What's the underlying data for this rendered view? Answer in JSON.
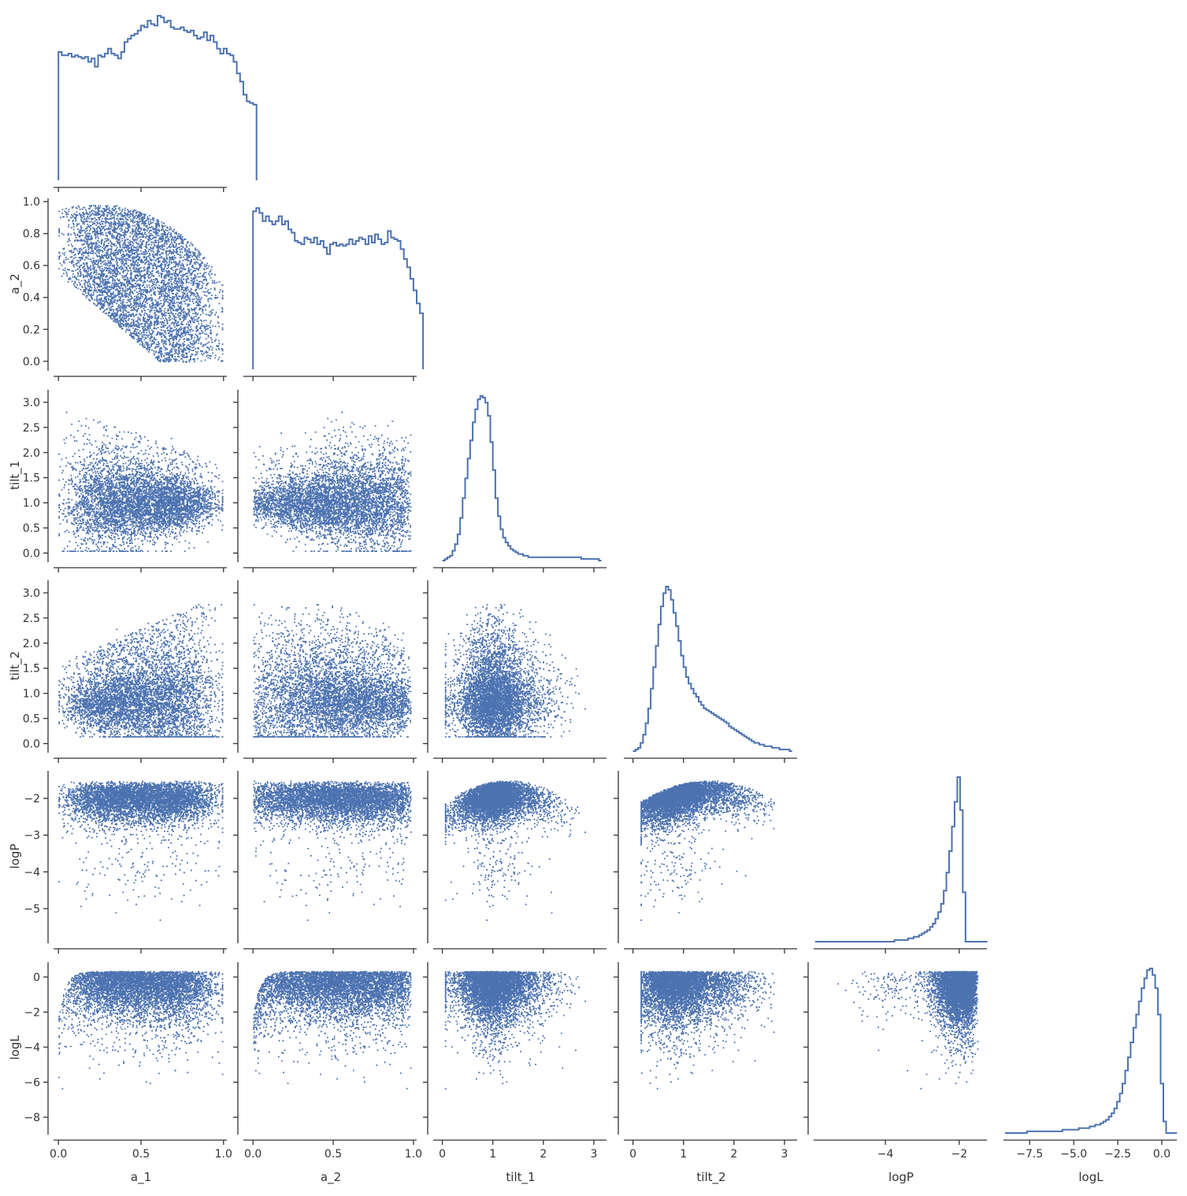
{
  "chart_data": {
    "type": "pairplot",
    "layout": "corner",
    "diagonal": "step-histogram",
    "offdiagonal": "scatter",
    "color": "#4c72b0",
    "grid": false,
    "variables": [
      {
        "name": "a_1",
        "range": [
          -0.02,
          1.02
        ],
        "ticks": [
          0.0,
          0.5,
          1.0
        ],
        "tick_labels": [
          "0.0",
          "0.5",
          "1.0"
        ]
      },
      {
        "name": "a_2",
        "range": [
          -0.05,
          1.02
        ],
        "ticks": [
          0.0,
          0.2,
          0.4,
          0.6,
          0.8,
          1.0
        ],
        "tick_labels": [
          "0.0",
          "0.2",
          "0.4",
          "0.6",
          "0.8",
          "1.0"
        ],
        "x_ticks": [
          0.0,
          0.5,
          1.0
        ],
        "x_tick_labels": [
          "0.0",
          "0.5",
          "1.0"
        ]
      },
      {
        "name": "tilt_1",
        "range": [
          -0.15,
          3.25
        ],
        "ticks": [
          0.0,
          0.5,
          1.0,
          1.5,
          2.0,
          2.5,
          3.0
        ],
        "tick_labels": [
          "0.0",
          "0.5",
          "1.0",
          "1.5",
          "2.0",
          "2.5",
          "3.0"
        ],
        "x_ticks": [
          0,
          1,
          2,
          3
        ],
        "x_tick_labels": [
          "0",
          "1",
          "2",
          "3"
        ]
      },
      {
        "name": "tilt_2",
        "range": [
          -0.15,
          3.25
        ],
        "ticks": [
          0.0,
          0.5,
          1.0,
          1.5,
          2.0,
          2.5,
          3.0
        ],
        "tick_labels": [
          "0.0",
          "0.5",
          "1.0",
          "1.5",
          "2.0",
          "2.5",
          "3.0"
        ],
        "x_ticks": [
          0,
          1,
          2,
          3
        ],
        "x_tick_labels": [
          "0",
          "1",
          "2",
          "3"
        ]
      },
      {
        "name": "logP",
        "range": [
          -5.9,
          -1.25
        ],
        "ticks": [
          -5,
          -4,
          -3,
          -2
        ],
        "tick_labels": [
          "−5",
          "−4",
          "−3",
          "−2"
        ],
        "x_ticks": [
          -4,
          -2
        ],
        "x_tick_labels": [
          "−4",
          "−2"
        ]
      },
      {
        "name": "logL",
        "range": [
          -8.9,
          0.85
        ],
        "ticks": [
          -8,
          -6,
          -4,
          -2,
          0
        ],
        "tick_labels": [
          "−8",
          "−6",
          "−4",
          "−2",
          "0"
        ],
        "x_ticks": [
          -7.5,
          -5.0,
          -2.5,
          0.0
        ],
        "x_tick_labels": [
          "−7.5",
          "−5.0",
          "−2.5",
          "0.0"
        ]
      }
    ],
    "histograms": [
      {
        "variable": "a_1",
        "bin_start": 0.0,
        "bin_width": 0.02,
        "counts": [
          0.78,
          0.76,
          0.76,
          0.77,
          0.75,
          0.76,
          0.75,
          0.74,
          0.75,
          0.72,
          0.74,
          0.69,
          0.76,
          0.75,
          0.77,
          0.8,
          0.77,
          0.76,
          0.74,
          0.78,
          0.84,
          0.86,
          0.88,
          0.89,
          0.91,
          0.94,
          0.93,
          0.97,
          0.95,
          0.94,
          1.0,
          0.99,
          0.96,
          0.97,
          0.93,
          0.92,
          0.92,
          0.93,
          0.91,
          0.9,
          0.91,
          0.88,
          0.86,
          0.87,
          0.9,
          0.85,
          0.88,
          0.84,
          0.8,
          0.77,
          0.8,
          0.77,
          0.76,
          0.72,
          0.65,
          0.6,
          0.52,
          0.48,
          0.47,
          0.46
        ]
      },
      {
        "variable": "a_2",
        "bin_start": 0.0,
        "bin_width": 0.02,
        "counts": [
          0.96,
          0.98,
          0.95,
          0.9,
          0.93,
          0.9,
          0.88,
          0.9,
          0.93,
          0.88,
          0.9,
          0.85,
          0.83,
          0.78,
          0.77,
          0.76,
          0.8,
          0.79,
          0.77,
          0.8,
          0.76,
          0.78,
          0.74,
          0.7,
          0.76,
          0.77,
          0.75,
          0.76,
          0.75,
          0.76,
          0.79,
          0.76,
          0.78,
          0.8,
          0.79,
          0.76,
          0.81,
          0.77,
          0.82,
          0.79,
          0.76,
          0.77,
          0.84,
          0.8,
          0.79,
          0.78,
          0.73,
          0.67,
          0.62,
          0.55,
          0.48,
          0.4,
          0.34
        ]
      },
      {
        "variable": "tilt_1",
        "bin_start": 0.0,
        "bin_width": 0.05,
        "counts": [
          0.0,
          0.01,
          0.02,
          0.03,
          0.06,
          0.1,
          0.16,
          0.26,
          0.38,
          0.5,
          0.62,
          0.73,
          0.84,
          0.92,
          0.98,
          1.0,
          0.99,
          0.96,
          0.88,
          0.72,
          0.55,
          0.38,
          0.27,
          0.19,
          0.14,
          0.11,
          0.09,
          0.07,
          0.06,
          0.05,
          0.04,
          0.04,
          0.03,
          0.03,
          0.02,
          0.02,
          0.02,
          0.02,
          0.02,
          0.02,
          0.02,
          0.02,
          0.02,
          0.02,
          0.02,
          0.02,
          0.02,
          0.02,
          0.02,
          0.02,
          0.02,
          0.02,
          0.02,
          0.02,
          0.02,
          0.01,
          0.01,
          0.01,
          0.01,
          0.01,
          0.01,
          0.01,
          0.0
        ]
      },
      {
        "variable": "tilt_2",
        "bin_start": 0.0,
        "bin_width": 0.05,
        "counts": [
          0.0,
          0.01,
          0.02,
          0.05,
          0.1,
          0.17,
          0.26,
          0.38,
          0.51,
          0.64,
          0.77,
          0.88,
          0.96,
          1.0,
          0.98,
          0.92,
          0.84,
          0.76,
          0.67,
          0.58,
          0.51,
          0.45,
          0.41,
          0.38,
          0.35,
          0.33,
          0.3,
          0.28,
          0.26,
          0.25,
          0.24,
          0.23,
          0.22,
          0.21,
          0.2,
          0.19,
          0.18,
          0.17,
          0.15,
          0.14,
          0.13,
          0.12,
          0.11,
          0.1,
          0.09,
          0.08,
          0.07,
          0.06,
          0.05,
          0.05,
          0.04,
          0.04,
          0.03,
          0.03,
          0.03,
          0.02,
          0.02,
          0.02,
          0.01,
          0.01,
          0.01,
          0.01,
          0.0
        ]
      },
      {
        "variable": "logP",
        "bin_start": -5.9,
        "bin_width": 0.074,
        "counts": [
          0.0,
          0.0,
          0.0,
          0.0,
          0.0,
          0.0,
          0.0,
          0.0,
          0.0,
          0.0,
          0.0,
          0.0,
          0.0,
          0.0,
          0.0,
          0.0,
          0.0,
          0.0,
          0.0,
          0.0,
          0.0,
          0.0,
          0.0,
          0.0,
          0.0,
          0.0,
          0.0,
          0.0,
          0.0,
          0.01,
          0.01,
          0.01,
          0.01,
          0.01,
          0.02,
          0.02,
          0.03,
          0.03,
          0.04,
          0.05,
          0.06,
          0.07,
          0.09,
          0.11,
          0.14,
          0.18,
          0.23,
          0.31,
          0.42,
          0.55,
          0.7,
          0.85,
          1.0,
          0.8,
          0.3,
          0.0,
          0.0,
          0.0,
          0.0,
          0.0,
          0.0,
          0.0,
          0.0
        ]
      },
      {
        "variable": "logL",
        "bin_start": -8.9,
        "bin_width": 0.155,
        "counts": [
          0.0,
          0.0,
          0.0,
          0.0,
          0.0,
          0.0,
          0.0,
          0.0,
          0.01,
          0.01,
          0.01,
          0.01,
          0.01,
          0.01,
          0.01,
          0.01,
          0.01,
          0.01,
          0.01,
          0.01,
          0.01,
          0.02,
          0.02,
          0.02,
          0.02,
          0.02,
          0.02,
          0.03,
          0.03,
          0.03,
          0.03,
          0.04,
          0.04,
          0.05,
          0.05,
          0.06,
          0.07,
          0.08,
          0.1,
          0.12,
          0.15,
          0.19,
          0.24,
          0.3,
          0.38,
          0.46,
          0.55,
          0.64,
          0.72,
          0.8,
          0.88,
          0.94,
          0.99,
          1.0,
          0.96,
          0.88,
          0.72,
          0.3,
          0.07,
          0.0,
          0.0,
          0.0,
          0.0
        ]
      }
    ]
  }
}
